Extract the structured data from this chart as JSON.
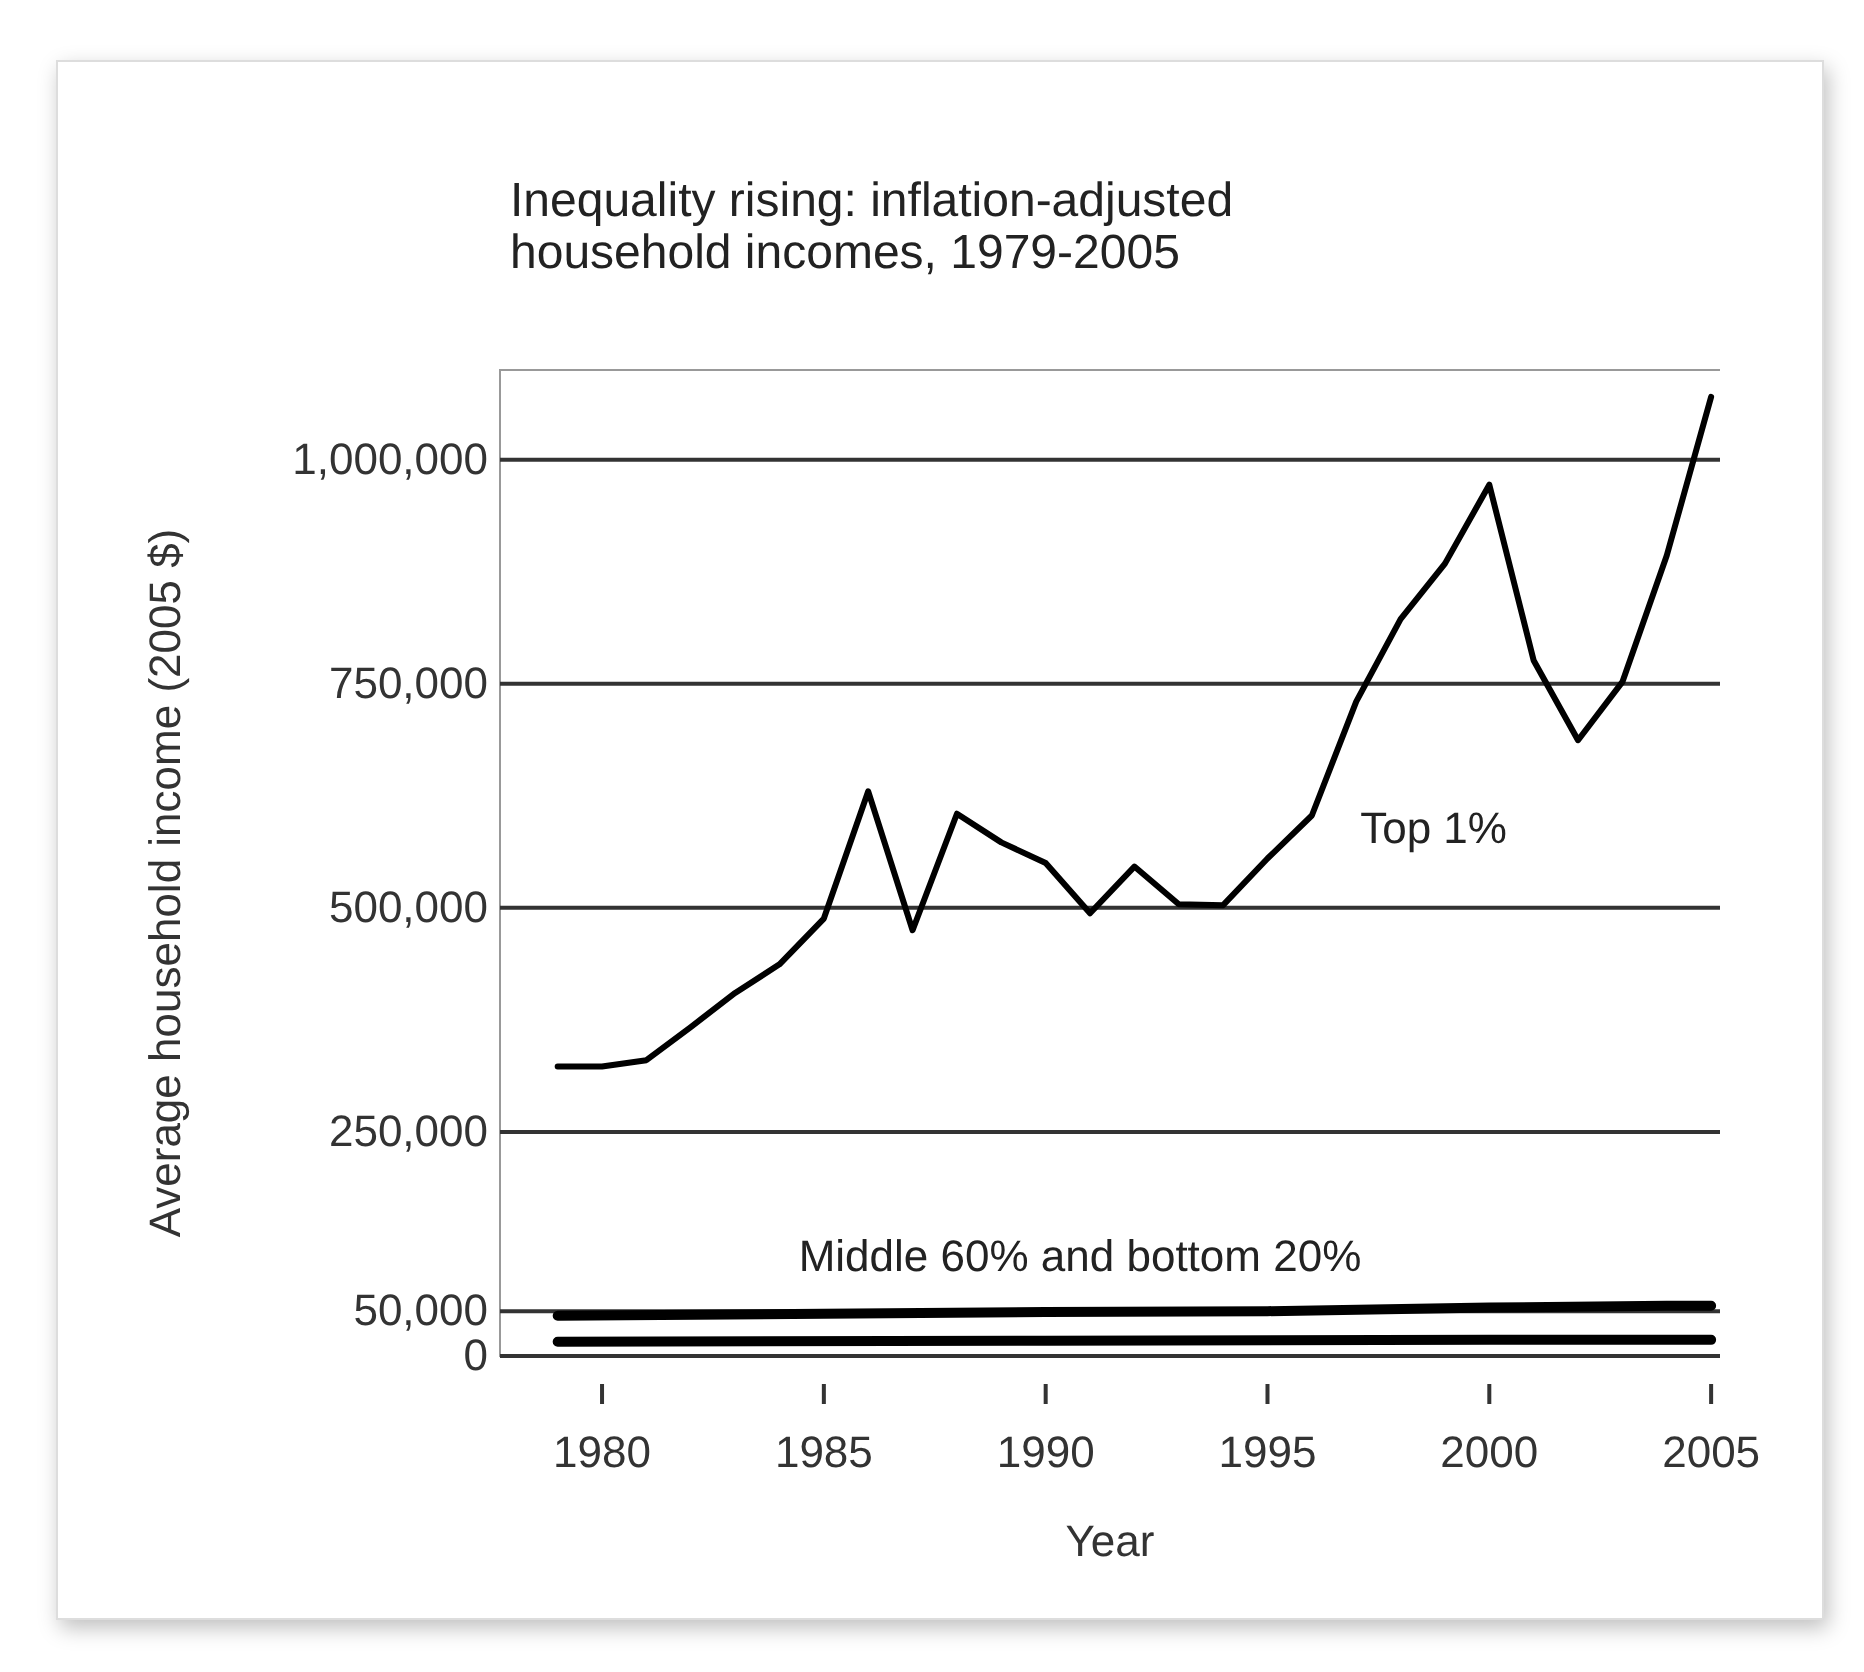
{
  "chart_data": {
    "type": "line",
    "title": "Inequality rising: inflation-adjusted household incomes, 1979-2005",
    "xlabel": "Year",
    "ylabel": "Average household income (2005 $)",
    "x": [
      1979,
      1980,
      1981,
      1982,
      1983,
      1984,
      1985,
      1986,
      1987,
      1988,
      1989,
      1990,
      1991,
      1992,
      1993,
      1994,
      1995,
      1996,
      1997,
      1998,
      1999,
      2000,
      2001,
      2002,
      2003,
      2004,
      2005
    ],
    "series": [
      {
        "name": "Top 1%",
        "color": "#000000",
        "values": [
          323000,
          323000,
          330000,
          367000,
          405000,
          437000,
          488000,
          630000,
          475000,
          605000,
          573000,
          550000,
          494000,
          546000,
          504000,
          503000,
          555000,
          603000,
          730000,
          822000,
          884000,
          972000,
          776000,
          687000,
          752000,
          893000,
          1070000
        ]
      },
      {
        "color": "#000000",
        "x": [
          1979,
          1985,
          1990,
          1995,
          2000,
          2004,
          2005
        ],
        "values": [
          45000,
          47000,
          49000,
          50000,
          54000,
          56000,
          56000
        ]
      },
      {
        "color": "#000000",
        "x": [
          1979,
          1990,
          2000,
          2005
        ],
        "values": [
          16000,
          17000,
          18000,
          18000
        ]
      }
    ],
    "annotations": [
      "Middle 60% and bottom 20%"
    ],
    "xlim": [
      1977.7,
      2005.2
    ],
    "xticks": [
      1980,
      1985,
      1990,
      1995,
      2000,
      2005
    ],
    "ylim": [
      0,
      1100000
    ],
    "yticks": [
      {
        "value": 0,
        "label": "0"
      },
      {
        "value": 50000,
        "label": "50,000"
      },
      {
        "value": 250000,
        "label": "250,000"
      },
      {
        "value": 500000,
        "label": "500,000"
      },
      {
        "value": 750000,
        "label": "750,000"
      },
      {
        "value": 1000000,
        "label": "1,000,000"
      }
    ],
    "grid": "y",
    "legend": false,
    "marker": "none",
    "line_style": "solid"
  }
}
